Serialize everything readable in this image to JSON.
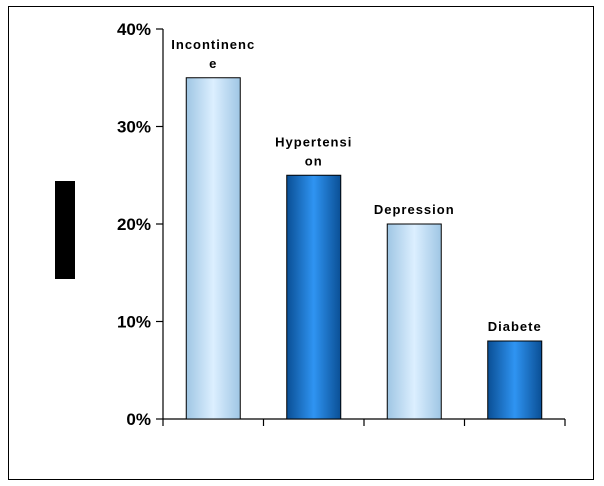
{
  "chart_data": {
    "type": "bar",
    "title": "",
    "xlabel": "",
    "ylabel": "",
    "categories": [
      "Incontinence",
      "Hypertension",
      "Depression",
      "Diabete"
    ],
    "label_lines": [
      [
        "Incontinenc",
        "e"
      ],
      [
        "Hypertensi",
        "on"
      ],
      [
        "Depression"
      ],
      [
        "Diabete"
      ]
    ],
    "values": [
      0.35,
      0.25,
      0.2,
      0.08
    ],
    "ylim": [
      0,
      0.4
    ],
    "yticks": [
      0,
      0.1,
      0.2,
      0.3,
      0.4
    ],
    "ytick_labels": [
      "0%",
      "10%",
      "20%",
      "30%",
      "40%"
    ],
    "grid": false,
    "legend": "none",
    "bar_colors": [
      "light-blue",
      "dark-blue",
      "light-blue",
      "dark-blue"
    ]
  },
  "colors": {
    "light_bar_edge": "#9fc6e4",
    "light_bar_center": "#dcefff",
    "dark_bar_edge": "#0a4f95",
    "dark_bar_center": "#2f94f2",
    "axis": "#000000",
    "ylabel_block": "#000000"
  }
}
